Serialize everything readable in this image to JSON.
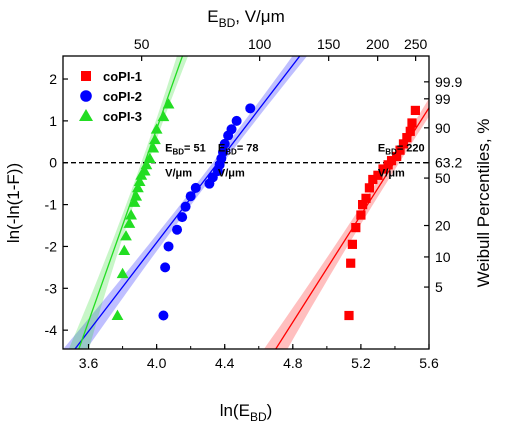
{
  "chart_data": {
    "type": "scatter",
    "subtype": "weibull-probability-plot",
    "xlabel": "ln(E",
    "xlabel_sub": "BD",
    "xlabel_end": ")",
    "ylabel": "ln(-ln(1-F))",
    "top_xlabel": "E",
    "top_xlabel_sub": "BD",
    "top_xlabel_end": ", V/μm",
    "right_ylabel": "Weibull Percentiles, %",
    "xlim": [
      3.45,
      5.6
    ],
    "ylim": [
      -4.45,
      2.55
    ],
    "xticks": [
      3.6,
      4.0,
      4.4,
      4.8,
      5.2,
      5.6
    ],
    "xtick_labels": [
      "3.6",
      "4.0",
      "4.4",
      "4.8",
      "5.2",
      "5.6"
    ],
    "yticks": [
      -4,
      -3,
      -2,
      -1,
      0,
      1,
      2
    ],
    "ytick_labels": [
      "-4",
      "-3",
      "-2",
      "-1",
      "0",
      "1",
      "2"
    ],
    "top_ticks": [
      {
        "label": "50",
        "value": 50
      },
      {
        "label": "100",
        "value": 100
      },
      {
        "label": "150",
        "value": 150
      },
      {
        "label": "200",
        "value": 200
      },
      {
        "label": "250",
        "value": 250
      }
    ],
    "right_ticks": [
      {
        "label": "99.9",
        "value": 99.9
      },
      {
        "label": "99",
        "value": 99
      },
      {
        "label": "90",
        "value": 90
      },
      {
        "label": "63.2",
        "value": 63.2
      },
      {
        "label": "50",
        "value": 50
      },
      {
        "label": "20",
        "value": 20
      },
      {
        "label": "10",
        "value": 10
      },
      {
        "label": "5",
        "value": 5
      }
    ],
    "reference_line": {
      "y": 0,
      "style": "dashed"
    },
    "series": [
      {
        "name": "coPI-1",
        "color": "#ff0000",
        "marker": "square",
        "fit": {
          "x0": 5.395,
          "slope": 6.4
        },
        "band": {
          "x_halfwidth_at_y0": 0.03,
          "x_halfwidth_at_ends": 0.07
        },
        "points": [
          [
            5.13,
            -3.65
          ],
          [
            5.14,
            -2.4
          ],
          [
            5.15,
            -1.95
          ],
          [
            5.17,
            -1.55
          ],
          [
            5.2,
            -1.25
          ],
          [
            5.21,
            -1.0
          ],
          [
            5.23,
            -0.85
          ],
          [
            5.25,
            -0.6
          ],
          [
            5.27,
            -0.4
          ],
          [
            5.3,
            -0.3
          ],
          [
            5.33,
            -0.15
          ],
          [
            5.36,
            -0.05
          ],
          [
            5.38,
            0.05
          ],
          [
            5.41,
            0.15
          ],
          [
            5.43,
            0.3
          ],
          [
            5.45,
            0.45
          ],
          [
            5.47,
            0.6
          ],
          [
            5.49,
            0.75
          ],
          [
            5.5,
            0.95
          ],
          [
            5.52,
            1.25
          ]
        ],
        "annotation": {
          "x": 5.3,
          "y": 0.12,
          "prefix": "E",
          "sub": "BD",
          "value": "= 220",
          "unit": "V/μm"
        }
      },
      {
        "name": "coPI-2",
        "color": "#0000ff",
        "marker": "circle",
        "fit": {
          "x0": 4.36,
          "slope": 5.3
        },
        "band": {
          "x_halfwidth_at_y0": 0.03,
          "x_halfwidth_at_ends": 0.07
        },
        "points": [
          [
            4.04,
            -3.65
          ],
          [
            4.05,
            -2.5
          ],
          [
            4.07,
            -2.0
          ],
          [
            4.12,
            -1.6
          ],
          [
            4.15,
            -1.3
          ],
          [
            4.17,
            -1.05
          ],
          [
            4.2,
            -0.8
          ],
          [
            4.23,
            -0.6
          ],
          [
            4.31,
            -0.5
          ],
          [
            4.33,
            -0.35
          ],
          [
            4.36,
            -0.2
          ],
          [
            4.37,
            -0.05
          ],
          [
            4.38,
            0.1
          ],
          [
            4.39,
            0.25
          ],
          [
            4.4,
            0.45
          ],
          [
            4.42,
            0.65
          ],
          [
            4.44,
            0.8
          ],
          [
            4.47,
            1.0
          ],
          [
            4.55,
            1.3
          ]
        ],
        "annotation": {
          "x": 4.36,
          "y": 0.12,
          "prefix": "E",
          "sub": "BD",
          "value": "= 78",
          "unit": "V/μm"
        }
      },
      {
        "name": "coPI-3",
        "color": "#22dd22",
        "marker": "triangle",
        "fit": {
          "x0": 3.93,
          "slope": 11.5
        },
        "band": {
          "x_halfwidth_at_y0": 0.02,
          "x_halfwidth_at_ends": 0.06
        },
        "points": [
          [
            3.77,
            -3.65
          ],
          [
            3.8,
            -2.65
          ],
          [
            3.81,
            -2.1
          ],
          [
            3.82,
            -1.75
          ],
          [
            3.84,
            -1.45
          ],
          [
            3.85,
            -1.25
          ],
          [
            3.87,
            -0.95
          ],
          [
            3.88,
            -0.8
          ],
          [
            3.89,
            -0.6
          ],
          [
            3.9,
            -0.45
          ],
          [
            3.91,
            -0.3
          ],
          [
            3.93,
            -0.2
          ],
          [
            3.94,
            -0.05
          ],
          [
            3.96,
            0.1
          ],
          [
            3.98,
            0.35
          ],
          [
            3.99,
            0.55
          ],
          [
            4.0,
            0.8
          ],
          [
            4.04,
            1.1
          ],
          [
            4.07,
            1.4
          ]
        ],
        "annotation": {
          "x": 4.05,
          "y": 0.12,
          "prefix": "E",
          "sub": "BD",
          "value": "= 51",
          "unit": "V/μm"
        }
      }
    ],
    "legend": {
      "position": "top-left"
    }
  }
}
